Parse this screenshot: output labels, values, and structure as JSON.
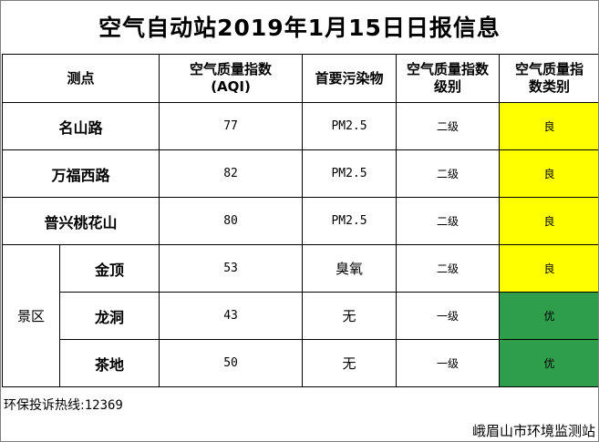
{
  "title": "空气自动站2019年1月15日日报信息",
  "headers": {
    "station": "测点",
    "aqi_line1": "空气质量指数",
    "aqi_line2": "(AQI)",
    "pollutant": "首要污染物",
    "level_line1": "空气质量指数",
    "level_line2": "级别",
    "category_line1": "空气质量指",
    "category_line2": "数类别"
  },
  "scenic_group_label": "景区",
  "rows": [
    {
      "station": "名山路",
      "aqi": "77",
      "pollutant": "PM2.5",
      "level": "二级",
      "category": "良",
      "color": "#ffff00"
    },
    {
      "station": "万福西路",
      "aqi": "82",
      "pollutant": "PM2.5",
      "level": "二级",
      "category": "良",
      "color": "#ffff00"
    },
    {
      "station": "普兴桃花山",
      "aqi": "80",
      "pollutant": "PM2.5",
      "level": "二级",
      "category": "良",
      "color": "#ffff00"
    },
    {
      "station": "金顶",
      "aqi": "53",
      "pollutant": "臭氧",
      "level": "二级",
      "category": "良",
      "color": "#ffff00"
    },
    {
      "station": "龙洞",
      "aqi": "43",
      "pollutant": "无",
      "level": "一级",
      "category": "优",
      "color": "#2f9e4a"
    },
    {
      "station": "茶地",
      "aqi": "50",
      "pollutant": "无",
      "level": "一级",
      "category": "优",
      "color": "#2f9e4a"
    }
  ],
  "hotline_label": "环保投诉热线:",
  "hotline_number": "12369",
  "agency": "峨眉山市环境监测站"
}
